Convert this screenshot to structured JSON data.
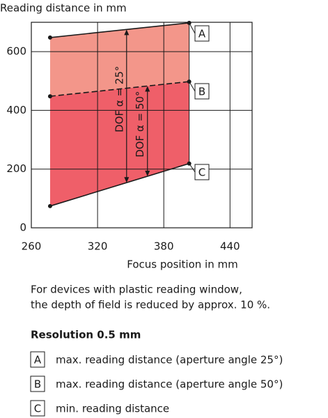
{
  "chart_data": {
    "type": "range",
    "title": "Reading distance in mm",
    "xlabel": "Focus position in mm",
    "x": [
      277,
      403
    ],
    "series": [
      {
        "name": "A",
        "color": "#1a1a1a",
        "values": [
          648,
          698
        ],
        "dashed": false
      },
      {
        "name": "B",
        "color": "#1a1a1a",
        "values": [
          448,
          498
        ],
        "dashed": true
      },
      {
        "name": "C",
        "color": "#1a1a1a",
        "values": [
          74,
          219
        ],
        "dashed": false
      }
    ],
    "band_colors": [
      "#f3968a",
      "#ef5f69"
    ],
    "annotations": [
      "DOF α = 25°",
      "DOF α = 50°"
    ],
    "xlim": [
      260,
      460
    ],
    "xticks": [
      260,
      320,
      380,
      440
    ],
    "ylim": [
      0,
      700
    ],
    "yticks": [
      0,
      200,
      400,
      600
    ],
    "grid": true
  },
  "note": [
    "For devices with plastic reading window,",
    "the depth of field is reduced by approx. 10 %."
  ],
  "legend": {
    "title": "Resolution 0.5 mm",
    "items": [
      "max. reading distance (aperture angle 25°)",
      "max. reading distance (aperture angle 50°)",
      "min. reading distance"
    ]
  }
}
